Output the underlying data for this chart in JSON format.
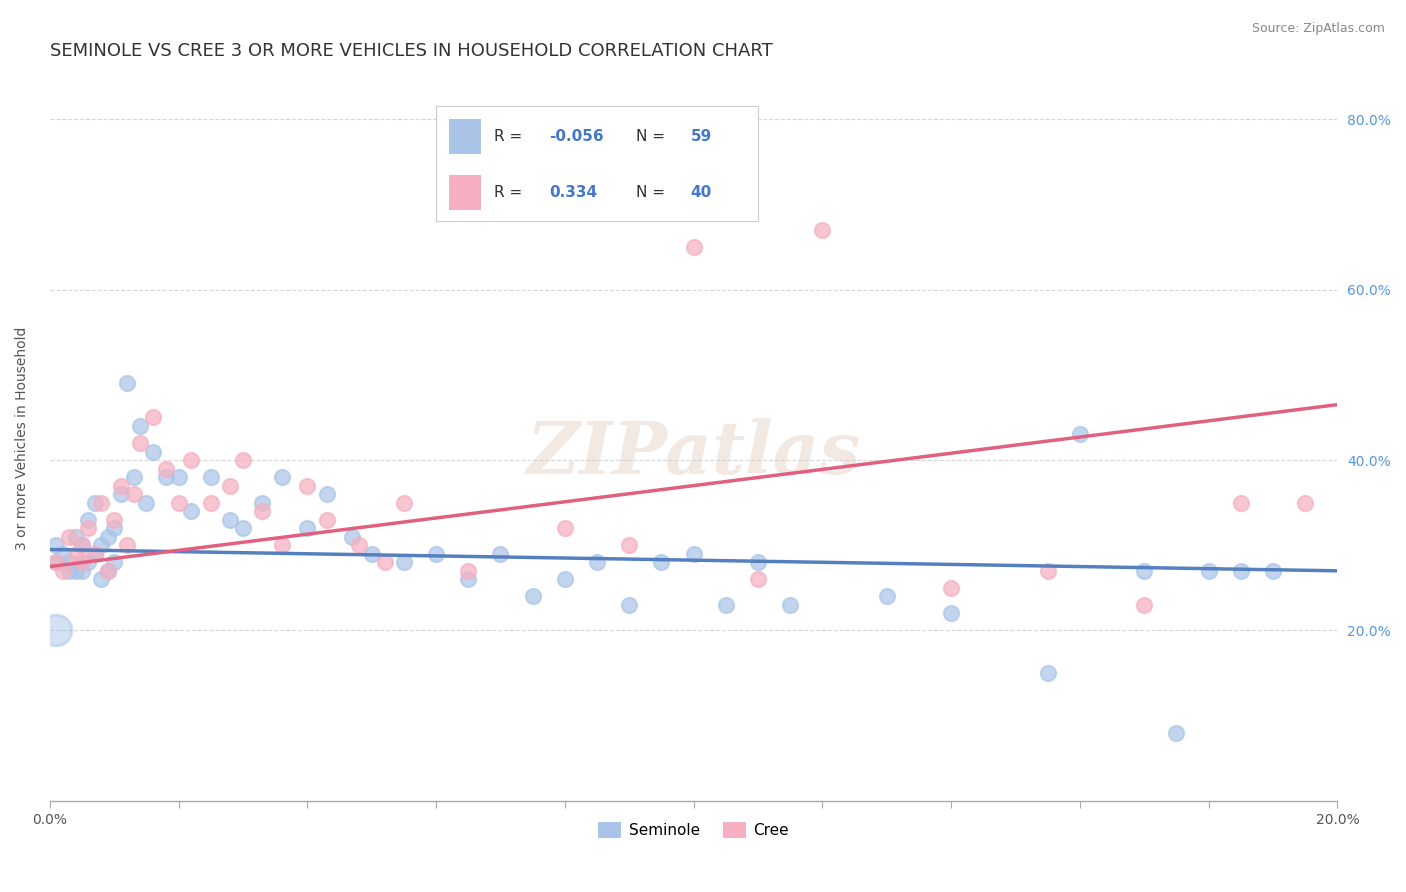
{
  "title": "SEMINOLE VS CREE 3 OR MORE VEHICLES IN HOUSEHOLD CORRELATION CHART",
  "source_text": "Source: ZipAtlas.com",
  "ylabel": "3 or more Vehicles in Household",
  "xlim": [
    0.0,
    0.2
  ],
  "ylim": [
    0.0,
    0.85
  ],
  "ytick_values": [
    0.2,
    0.4,
    0.6,
    0.8
  ],
  "ytick_labels": [
    "20.0%",
    "40.0%",
    "60.0%",
    "80.0%"
  ],
  "xtick_values": [
    0.0,
    0.02,
    0.04,
    0.06,
    0.08,
    0.1,
    0.12,
    0.14,
    0.16,
    0.18,
    0.2
  ],
  "xtick_labels": [
    "0.0%",
    "",
    "",
    "",
    "",
    "",
    "",
    "",
    "",
    "",
    "20.0%"
  ],
  "legend_r_seminole": "-0.056",
  "legend_n_seminole": "59",
  "legend_r_cree": "0.334",
  "legend_n_cree": "40",
  "seminole_color": "#aac4e8",
  "cree_color": "#f5afc0",
  "seminole_line_color": "#5580c0",
  "cree_line_color": "#e06080",
  "seminole_x": [
    0.001,
    0.001,
    0.002,
    0.003,
    0.003,
    0.004,
    0.004,
    0.005,
    0.005,
    0.006,
    0.006,
    0.007,
    0.007,
    0.008,
    0.008,
    0.009,
    0.009,
    0.01,
    0.01,
    0.011,
    0.012,
    0.013,
    0.014,
    0.015,
    0.016,
    0.018,
    0.02,
    0.022,
    0.025,
    0.028,
    0.03,
    0.033,
    0.036,
    0.04,
    0.043,
    0.047,
    0.05,
    0.055,
    0.06,
    0.065,
    0.07,
    0.075,
    0.08,
    0.085,
    0.09,
    0.095,
    0.1,
    0.105,
    0.11,
    0.115,
    0.13,
    0.14,
    0.155,
    0.16,
    0.17,
    0.175,
    0.18,
    0.185,
    0.19
  ],
  "seminole_y": [
    0.3,
    0.28,
    0.29,
    0.28,
    0.27,
    0.31,
    0.27,
    0.3,
    0.27,
    0.33,
    0.28,
    0.35,
    0.29,
    0.3,
    0.26,
    0.31,
    0.27,
    0.32,
    0.28,
    0.36,
    0.49,
    0.38,
    0.44,
    0.35,
    0.41,
    0.38,
    0.38,
    0.34,
    0.38,
    0.33,
    0.32,
    0.35,
    0.38,
    0.32,
    0.36,
    0.31,
    0.29,
    0.28,
    0.29,
    0.26,
    0.29,
    0.24,
    0.26,
    0.28,
    0.23,
    0.28,
    0.29,
    0.23,
    0.28,
    0.23,
    0.24,
    0.22,
    0.15,
    0.43,
    0.27,
    0.08,
    0.27,
    0.27,
    0.27
  ],
  "cree_x": [
    0.001,
    0.002,
    0.003,
    0.004,
    0.005,
    0.005,
    0.006,
    0.007,
    0.008,
    0.009,
    0.01,
    0.011,
    0.012,
    0.013,
    0.014,
    0.016,
    0.018,
    0.02,
    0.022,
    0.025,
    0.028,
    0.03,
    0.033,
    0.036,
    0.04,
    0.043,
    0.048,
    0.052,
    0.055,
    0.065,
    0.08,
    0.09,
    0.1,
    0.11,
    0.12,
    0.14,
    0.155,
    0.17,
    0.185,
    0.195
  ],
  "cree_y": [
    0.28,
    0.27,
    0.31,
    0.29,
    0.28,
    0.3,
    0.32,
    0.29,
    0.35,
    0.27,
    0.33,
    0.37,
    0.3,
    0.36,
    0.42,
    0.45,
    0.39,
    0.35,
    0.4,
    0.35,
    0.37,
    0.4,
    0.34,
    0.3,
    0.37,
    0.33,
    0.3,
    0.28,
    0.35,
    0.27,
    0.32,
    0.3,
    0.65,
    0.26,
    0.67,
    0.25,
    0.27,
    0.23,
    0.35,
    0.35
  ],
  "sem_line_x0": 0.0,
  "sem_line_x1": 0.2,
  "sem_line_y0": 0.295,
  "sem_line_y1": 0.27,
  "cree_line_x0": 0.0,
  "cree_line_x1": 0.2,
  "cree_line_y0": 0.275,
  "cree_line_y1": 0.465,
  "background_color": "#ffffff",
  "grid_color": "#cccccc",
  "title_fontsize": 13,
  "axis_label_fontsize": 10,
  "tick_fontsize": 10,
  "right_tick_color": "#5599dd",
  "title_color": "#333333"
}
